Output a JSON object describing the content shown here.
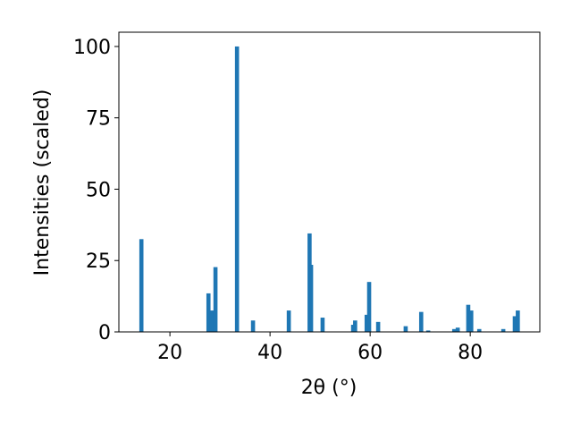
{
  "chart_data": {
    "type": "bar",
    "x_label": "2θ (°)",
    "y_label": "Intensities (scaled)",
    "color": "#1f77b4",
    "x": [
      14.3,
      27.7,
      28.4,
      29.1,
      33.4,
      36.6,
      43.75,
      47.9,
      48.2,
      50.5,
      56.6,
      57.0,
      59.3,
      59.8,
      61.6,
      67.1,
      70.2,
      71.6,
      76.8,
      77.5,
      79.6,
      80.2,
      81.8,
      86.6,
      88.9,
      89.5
    ],
    "values": [
      32.5,
      13.5,
      7.5,
      22.7,
      100,
      4,
      7.5,
      34.5,
      23.5,
      5,
      2.5,
      4,
      6,
      17.5,
      3.5,
      2,
      7,
      0.5,
      1,
      1.5,
      9.5,
      7.5,
      1,
      1,
      5.5,
      7.5
    ],
    "xlim": [
      9.8,
      93.9
    ],
    "xticks": [
      20,
      40,
      60,
      80
    ],
    "ylim": [
      0,
      105
    ],
    "yticks": [
      0,
      25,
      50,
      75,
      100
    ]
  }
}
